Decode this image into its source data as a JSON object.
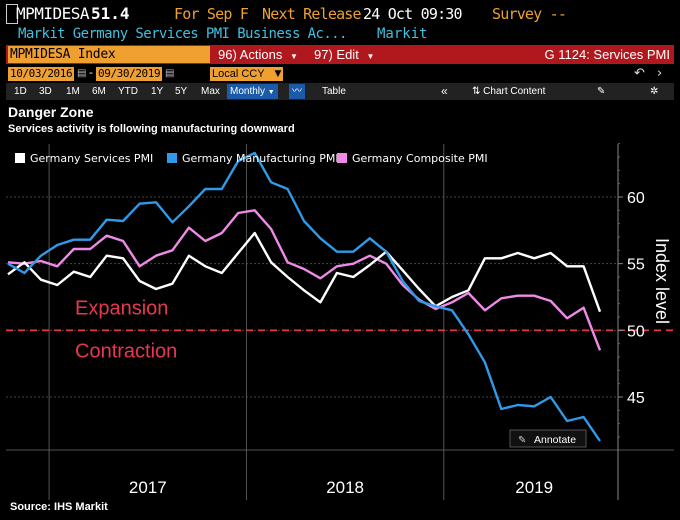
{
  "header": {
    "ticker": "MPMIDESA",
    "last_value": "51.4",
    "for_period": "For Sep F",
    "next_release_label": "Next Release",
    "next_release_value": "24 Oct 09:30",
    "survey": "Survey --",
    "description": "Markit Germany Services PMI Business Ac...",
    "source_name": "Markit"
  },
  "function_bar": {
    "index_name": "MPMIDESA Index",
    "actions_label": "96) Actions",
    "edit_label": "97) Edit",
    "graph_title": "G 1124: Services PMI"
  },
  "date_controls": {
    "start_date": "10/03/2016",
    "end_date": "09/30/2019",
    "currency": "Local CCY",
    "separator": "-"
  },
  "toolbar": {
    "ranges": [
      "1D",
      "3D",
      "1M",
      "6M",
      "YTD",
      "1Y",
      "5Y",
      "Max"
    ],
    "frequency": "Monthly",
    "table_label": "Table",
    "chart_content_label": "Chart Content"
  },
  "chart": {
    "title": "Danger Zone",
    "subtitle": "Services activity is following manufacturing downward",
    "source": "Source: IHS Markit",
    "annotate_label": "Annotate"
  },
  "chart_data": {
    "type": "line",
    "title": "Danger Zone",
    "subtitle": "Services activity is following manufacturing downward",
    "ylabel": "Index level",
    "ylim": [
      41,
      65
    ],
    "yticks": [
      45,
      50,
      55,
      60
    ],
    "xlabels": [
      "2017",
      "2018",
      "2019"
    ],
    "x_start": "2016-10",
    "x_end": "2019-09",
    "reference_line": {
      "value": 50,
      "color": "#e8384f",
      "style": "dashed"
    },
    "annotations": [
      {
        "text": "Expansion",
        "y": 51.7,
        "color": "#e8384f"
      },
      {
        "text": "Contraction",
        "y": 48.5,
        "color": "#e8384f"
      }
    ],
    "series": [
      {
        "name": "Germany Services PMI",
        "color": "#ffffff",
        "values": [
          54.2,
          55.1,
          53.8,
          53.4,
          54.4,
          54.0,
          55.6,
          55.4,
          53.7,
          53.1,
          53.5,
          55.6,
          54.8,
          54.3,
          55.8,
          57.3,
          55.1,
          54.0,
          53.0,
          52.1,
          54.3,
          54.0,
          54.9,
          55.9,
          54.5,
          53.1,
          51.8,
          52.5,
          53.0,
          55.4,
          55.4,
          55.8,
          55.4,
          55.8,
          54.8,
          54.8,
          51.4
        ]
      },
      {
        "name": "Germany Manufacturing PMI",
        "color": "#2f9ae8",
        "values": [
          55.0,
          54.3,
          55.6,
          56.4,
          56.8,
          56.8,
          58.3,
          58.2,
          59.5,
          59.6,
          58.1,
          59.3,
          60.6,
          60.6,
          62.7,
          63.3,
          61.1,
          60.6,
          58.2,
          56.9,
          55.9,
          55.9,
          56.9,
          55.9,
          53.7,
          52.2,
          51.8,
          51.5,
          49.7,
          47.6,
          44.1,
          44.4,
          44.3,
          45.0,
          43.2,
          43.5,
          41.7
        ]
      },
      {
        "name": "Germany Composite PMI",
        "color": "#f08ae8",
        "values": [
          55.1,
          55.0,
          55.2,
          54.8,
          56.1,
          56.1,
          57.1,
          56.7,
          54.8,
          55.6,
          56.0,
          57.7,
          56.7,
          57.3,
          58.8,
          59.0,
          57.6,
          55.1,
          54.6,
          53.9,
          54.8,
          55.0,
          55.6,
          55.0,
          53.4,
          52.3,
          51.6,
          52.1,
          52.8,
          51.5,
          52.4,
          52.6,
          52.6,
          52.2,
          50.9,
          51.7,
          48.5
        ]
      }
    ],
    "legend": "top-left"
  }
}
